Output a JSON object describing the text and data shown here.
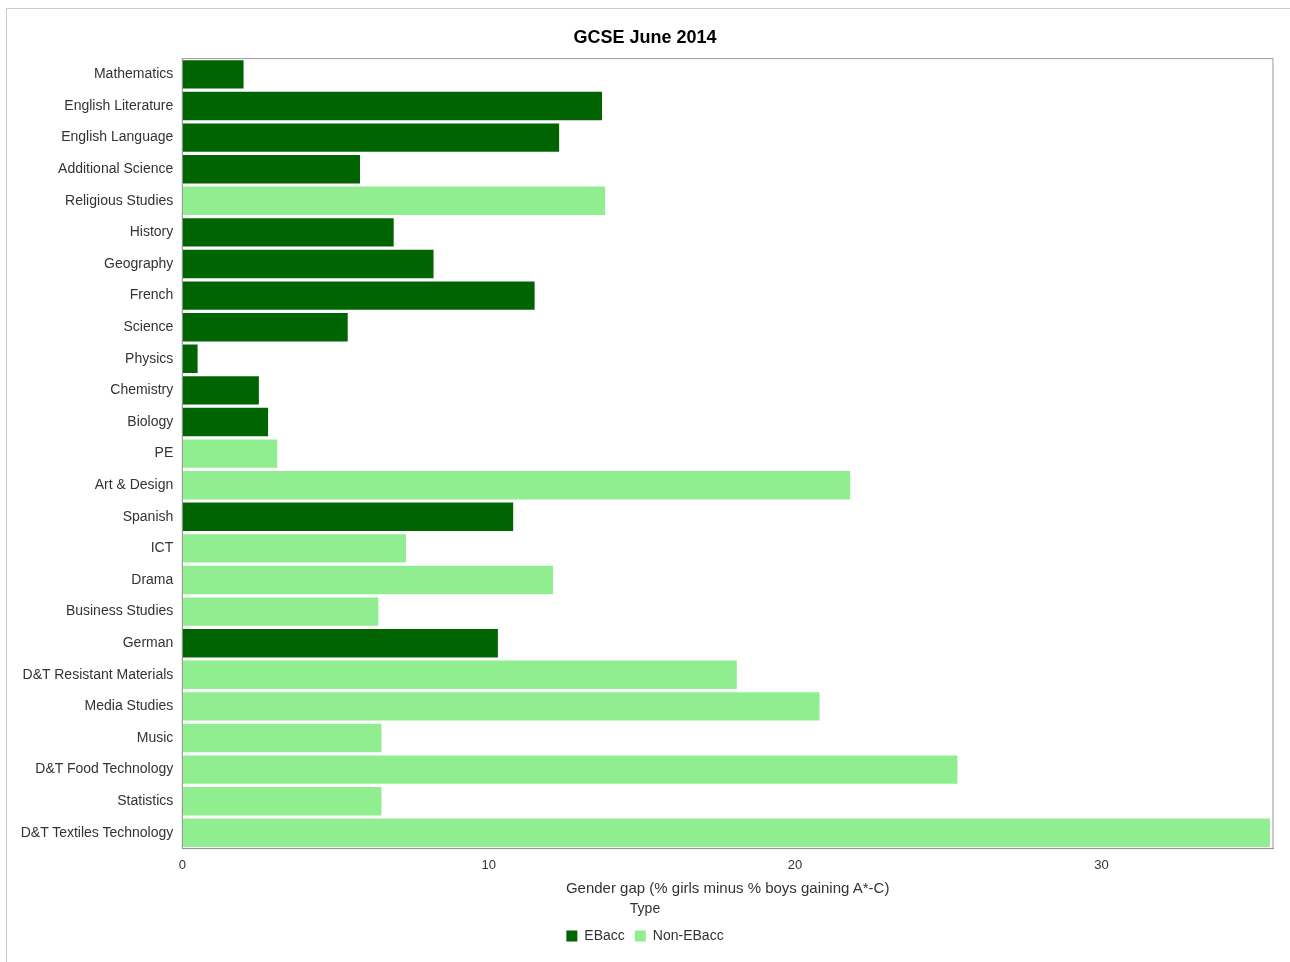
{
  "chart_data": {
    "type": "bar",
    "orientation": "horizontal",
    "title": "GCSE June 2014",
    "xlabel": "Gender gap (% girls minus % boys gaining A*-C)",
    "legend_title": "Type",
    "legend": "bottom",
    "grid": false,
    "categories": [
      "Mathematics",
      "English Literature",
      "English Language",
      "Additional Science",
      "Religious Studies",
      "History",
      "Geography",
      "French",
      "Science",
      "Physics",
      "Chemistry",
      "Biology",
      "PE",
      "Art & Design",
      "Spanish",
      "ICT",
      "Drama",
      "Business Studies",
      "German",
      "D&T Resistant Materials",
      "Media Studies",
      "Music",
      "D&T Food Technology",
      "Statistics",
      "D&T Textiles Technology"
    ],
    "series": [
      {
        "name": "EBacc",
        "color": "#006400",
        "values": [
          2.0,
          13.7,
          12.3,
          5.8,
          null,
          6.9,
          8.2,
          11.5,
          5.4,
          0.5,
          2.5,
          2.8,
          null,
          null,
          10.8,
          null,
          null,
          null,
          10.3,
          null,
          null,
          null,
          null,
          null,
          null
        ]
      },
      {
        "name": "Non-EBacc",
        "color": "#90ee90",
        "values": [
          null,
          null,
          null,
          null,
          13.8,
          null,
          null,
          null,
          null,
          null,
          null,
          null,
          3.1,
          21.8,
          null,
          7.3,
          12.1,
          6.4,
          null,
          18.1,
          20.8,
          6.5,
          25.3,
          6.5,
          35.5
        ]
      }
    ],
    "xlim": [
      0,
      35.6
    ],
    "xticks": [
      0,
      10,
      20,
      30
    ]
  }
}
